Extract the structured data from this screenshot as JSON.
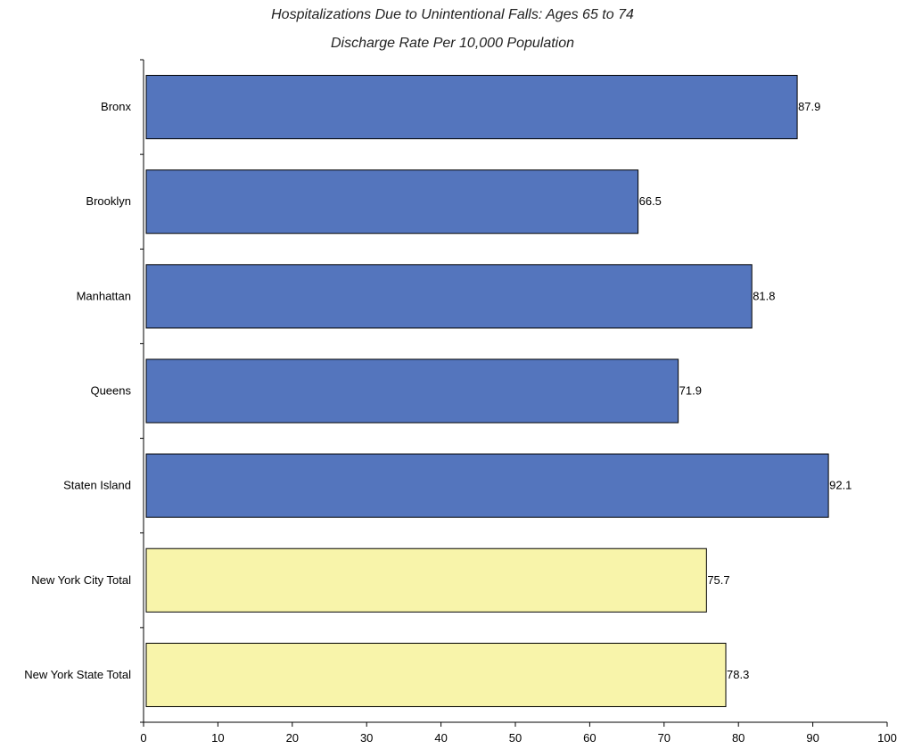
{
  "chart_data": {
    "type": "bar",
    "orientation": "horizontal",
    "title": "Hospitalizations Due to Unintentional Falls: Ages 65 to 74",
    "subtitle": "Discharge Rate Per 10,000 Population",
    "categories": [
      "Bronx",
      "Brooklyn",
      "Manhattan",
      "Queens",
      "Staten Island",
      "New York City Total",
      "New York State Total"
    ],
    "values": [
      87.9,
      66.5,
      81.8,
      71.9,
      92.1,
      75.7,
      78.3
    ],
    "data_labels": [
      "87.9",
      "66.5",
      "81.8",
      "71.9",
      "92.1",
      "75.7",
      "78.3"
    ],
    "bar_colors": [
      "#5475bd",
      "#5475bd",
      "#5475bd",
      "#5475bd",
      "#5475bd",
      "#f8f4aa",
      "#f8f4aa"
    ],
    "xlim": [
      0,
      100
    ],
    "xticks": [
      0,
      10,
      20,
      30,
      40,
      50,
      60,
      70,
      80,
      90,
      100
    ],
    "xlabel": "",
    "ylabel": "",
    "grid": false,
    "legend": "none"
  }
}
